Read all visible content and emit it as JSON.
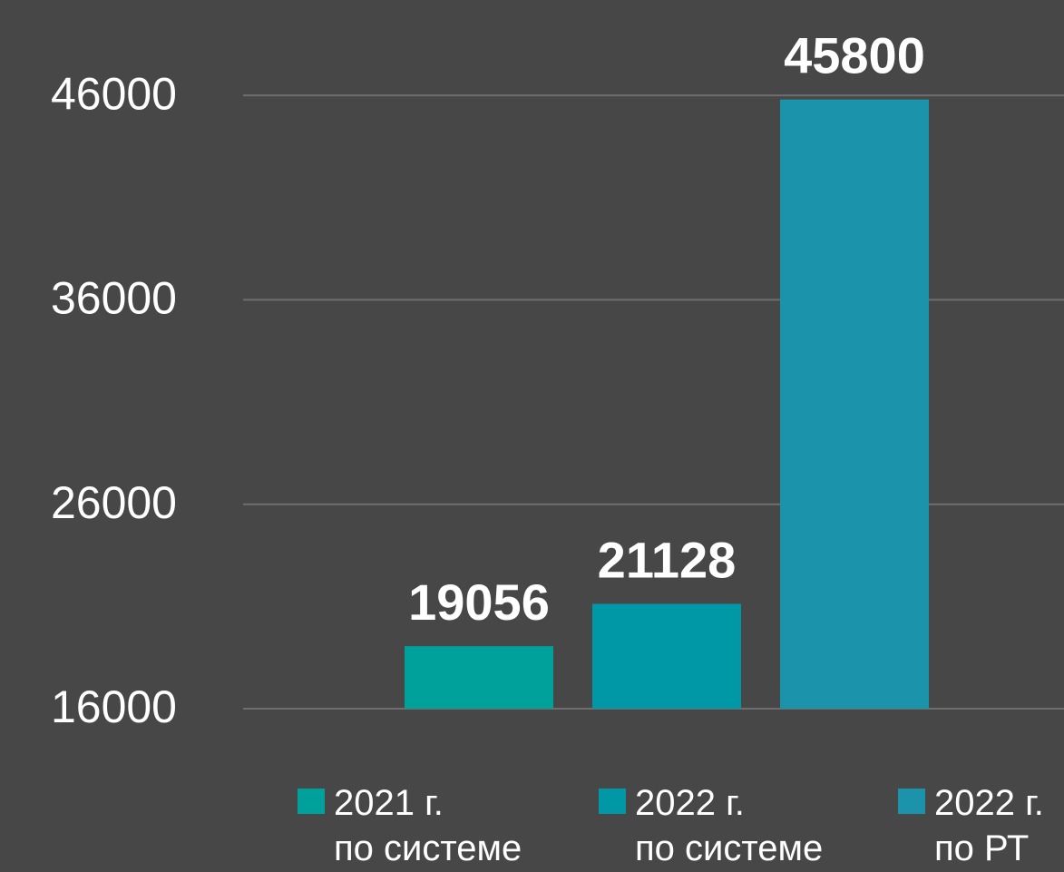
{
  "chart_data": {
    "type": "bar",
    "series": [
      {
        "name": "2021 г.\nпо системе",
        "color": "#00a19a",
        "values": [
          19056
        ]
      },
      {
        "name": "2022 г.\nпо системе",
        "color": "#0097a7",
        "values": [
          21128
        ]
      },
      {
        "name": "2022 г.\nпо РТ",
        "color": "#1b93ab",
        "values": [
          45800
        ]
      }
    ],
    "ylim": [
      16000,
      50000
    ],
    "yticks": [
      16000,
      26000,
      36000,
      46000
    ],
    "grid": true,
    "legend": "bottom"
  }
}
